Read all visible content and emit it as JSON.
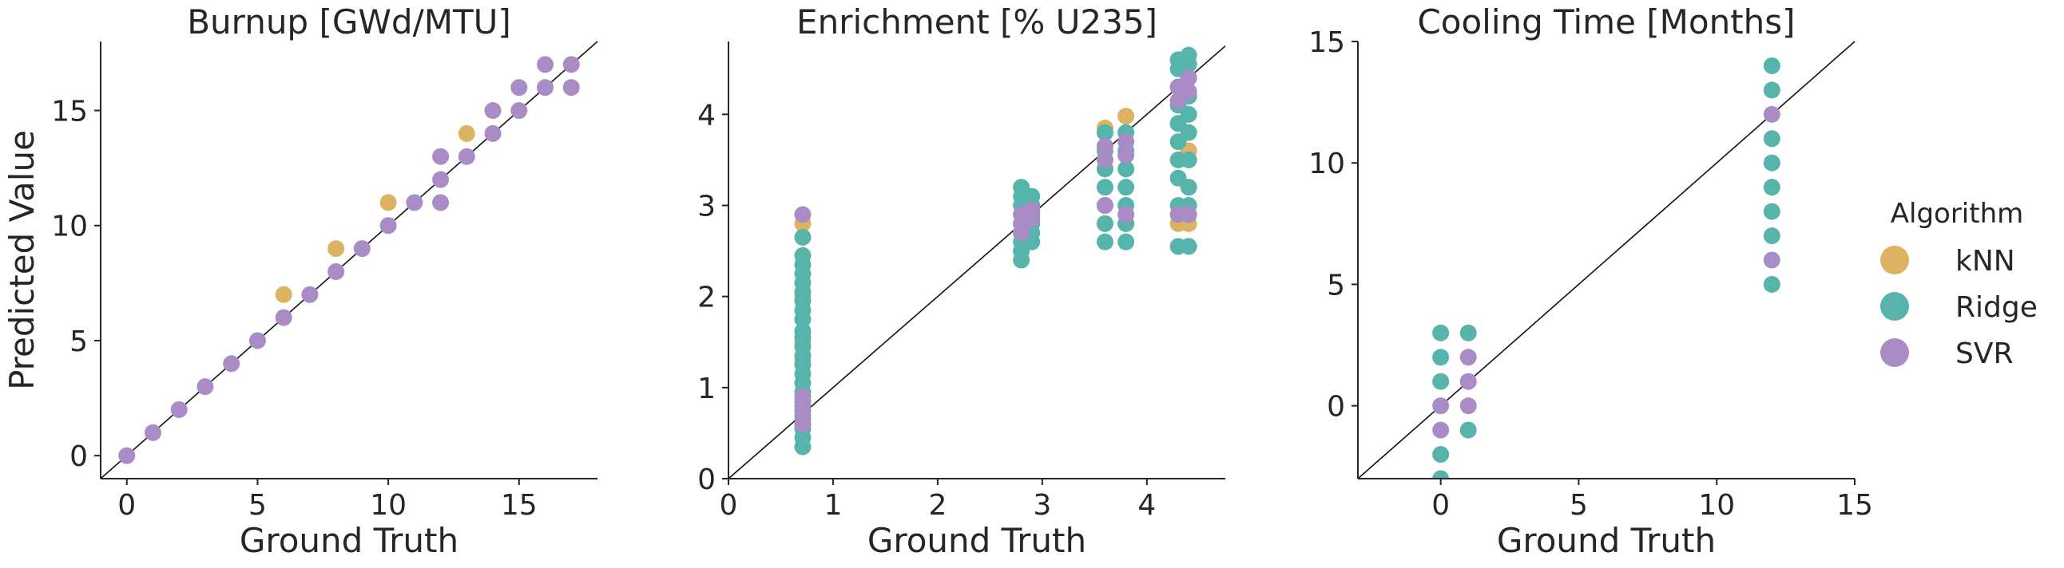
{
  "figure": {
    "ylabel": "Predicted Value",
    "legend": {
      "title": "Algorithm",
      "placement": "right",
      "entries": [
        {
          "name": "kNN",
          "color": "#dbb363"
        },
        {
          "name": "Ridge",
          "color": "#57b4ab"
        },
        {
          "name": "SVR",
          "color": "#a98cc6"
        }
      ]
    }
  },
  "chart_data": [
    {
      "type": "scatter",
      "title": "Burnup [GWd/MTU]",
      "xlabel": "Ground Truth",
      "xlim": [
        -1,
        18
      ],
      "ylim": [
        -1,
        18
      ],
      "xticks": [
        0,
        5,
        10,
        15
      ],
      "yticks": [
        0,
        5,
        10,
        15
      ],
      "identity_line": true,
      "series": [
        {
          "name": "kNN",
          "color": "#dbb363",
          "points": [
            [
              6,
              7
            ],
            [
              8,
              9
            ],
            [
              10,
              11
            ],
            [
              13,
              14
            ]
          ]
        },
        {
          "name": "Ridge",
          "color": "#57b4ab",
          "points": []
        },
        {
          "name": "SVR",
          "color": "#a98cc6",
          "points": [
            [
              0,
              0
            ],
            [
              1,
              1
            ],
            [
              2,
              2
            ],
            [
              3,
              3
            ],
            [
              4,
              4
            ],
            [
              5,
              5
            ],
            [
              6,
              6
            ],
            [
              7,
              7
            ],
            [
              8,
              8
            ],
            [
              9,
              9
            ],
            [
              10,
              10
            ],
            [
              11,
              11
            ],
            [
              12,
              11
            ],
            [
              12,
              12
            ],
            [
              12,
              13
            ],
            [
              13,
              13
            ],
            [
              14,
              14
            ],
            [
              14,
              15
            ],
            [
              15,
              15
            ],
            [
              15,
              16
            ],
            [
              16,
              16
            ],
            [
              16,
              17
            ],
            [
              17,
              16
            ],
            [
              17,
              17
            ]
          ]
        }
      ]
    },
    {
      "type": "scatter",
      "title": "Enrichment [% U235]",
      "xlabel": "Ground Truth",
      "xlim": [
        0,
        4.75
      ],
      "ylim": [
        0,
        4.8
      ],
      "xticks": [
        0,
        1,
        2,
        3,
        4
      ],
      "yticks": [
        0,
        1,
        2,
        3,
        4
      ],
      "identity_line": true,
      "series": [
        {
          "name": "kNN",
          "color": "#dbb363",
          "points": [
            [
              0.71,
              2.8
            ],
            [
              0.71,
              1.3
            ],
            [
              0.71,
              1.5
            ],
            [
              0.71,
              2.0
            ],
            [
              3.6,
              3.85
            ],
            [
              3.6,
              2.8
            ],
            [
              3.8,
              3.98
            ],
            [
              3.8,
              2.8
            ],
            [
              4.3,
              3.9
            ],
            [
              4.3,
              2.8
            ],
            [
              4.4,
              2.8
            ],
            [
              4.4,
              3.6
            ]
          ]
        },
        {
          "name": "Ridge",
          "color": "#57b4ab",
          "points": [
            [
              0.71,
              0.35
            ],
            [
              0.71,
              0.45
            ],
            [
              0.71,
              0.55
            ],
            [
              0.71,
              0.65
            ],
            [
              0.71,
              0.75
            ],
            [
              0.71,
              0.85
            ],
            [
              0.71,
              0.95
            ],
            [
              0.71,
              1.05
            ],
            [
              0.71,
              1.15
            ],
            [
              0.71,
              1.25
            ],
            [
              0.71,
              1.35
            ],
            [
              0.71,
              1.45
            ],
            [
              0.71,
              1.55
            ],
            [
              0.71,
              1.62
            ],
            [
              0.71,
              1.75
            ],
            [
              0.71,
              1.85
            ],
            [
              0.71,
              1.95
            ],
            [
              0.71,
              2.05
            ],
            [
              0.71,
              2.15
            ],
            [
              0.71,
              2.25
            ],
            [
              0.71,
              2.35
            ],
            [
              0.71,
              2.45
            ],
            [
              0.71,
              2.65
            ],
            [
              2.8,
              2.4
            ],
            [
              2.8,
              2.5
            ],
            [
              2.8,
              2.6
            ],
            [
              2.8,
              2.7
            ],
            [
              2.8,
              2.8
            ],
            [
              2.8,
              2.9
            ],
            [
              2.8,
              3.0
            ],
            [
              2.8,
              3.1
            ],
            [
              2.8,
              3.2
            ],
            [
              2.9,
              2.6
            ],
            [
              2.9,
              2.7
            ],
            [
              2.9,
              2.8
            ],
            [
              2.9,
              2.9
            ],
            [
              2.9,
              3.0
            ],
            [
              2.9,
              3.1
            ],
            [
              3.6,
              2.6
            ],
            [
              3.6,
              2.8
            ],
            [
              3.6,
              3.0
            ],
            [
              3.6,
              3.2
            ],
            [
              3.6,
              3.4
            ],
            [
              3.6,
              3.6
            ],
            [
              3.6,
              3.8
            ],
            [
              3.8,
              2.6
            ],
            [
              3.8,
              2.8
            ],
            [
              3.8,
              3.0
            ],
            [
              3.8,
              3.2
            ],
            [
              3.8,
              3.4
            ],
            [
              3.8,
              3.6
            ],
            [
              3.8,
              3.8
            ],
            [
              4.3,
              2.55
            ],
            [
              4.3,
              3.0
            ],
            [
              4.3,
              3.3
            ],
            [
              4.3,
              3.5
            ],
            [
              4.3,
              3.7
            ],
            [
              4.3,
              3.9
            ],
            [
              4.3,
              4.1
            ],
            [
              4.3,
              4.3
            ],
            [
              4.3,
              4.5
            ],
            [
              4.3,
              4.6
            ],
            [
              4.4,
              2.55
            ],
            [
              4.4,
              3.0
            ],
            [
              4.4,
              3.2
            ],
            [
              4.4,
              3.5
            ],
            [
              4.4,
              3.8
            ],
            [
              4.4,
              4.0
            ],
            [
              4.4,
              4.2
            ],
            [
              4.4,
              4.4
            ],
            [
              4.4,
              4.55
            ],
            [
              4.4,
              4.65
            ]
          ]
        },
        {
          "name": "SVR",
          "color": "#a98cc6",
          "points": [
            [
              0.71,
              2.9
            ],
            [
              0.71,
              0.6
            ],
            [
              0.71,
              0.7
            ],
            [
              0.71,
              0.8
            ],
            [
              0.71,
              0.9
            ],
            [
              2.8,
              2.7
            ],
            [
              2.8,
              2.8
            ],
            [
              2.8,
              2.9
            ],
            [
              2.9,
              2.85
            ],
            [
              2.9,
              2.95
            ],
            [
              3.6,
              3.5
            ],
            [
              3.6,
              3.65
            ],
            [
              3.6,
              3.0
            ],
            [
              3.8,
              3.55
            ],
            [
              3.8,
              3.7
            ],
            [
              3.8,
              2.9
            ],
            [
              4.3,
              4.15
            ],
            [
              4.3,
              4.3
            ],
            [
              4.3,
              2.9
            ],
            [
              4.4,
              4.25
            ],
            [
              4.4,
              4.4
            ],
            [
              4.4,
              2.9
            ]
          ]
        }
      ]
    },
    {
      "type": "scatter",
      "title": "Cooling Time [Months]",
      "xlabel": "Ground Truth",
      "xlim": [
        -3,
        15
      ],
      "ylim": [
        -3,
        15
      ],
      "xticks": [
        0,
        5,
        10,
        15
      ],
      "yticks": [
        0,
        5,
        10,
        15
      ],
      "identity_line": true,
      "series": [
        {
          "name": "kNN",
          "color": "#dbb363",
          "points": []
        },
        {
          "name": "Ridge",
          "color": "#57b4ab",
          "points": [
            [
              0,
              3
            ],
            [
              0,
              2
            ],
            [
              0,
              1
            ],
            [
              0,
              -2
            ],
            [
              0,
              -3
            ],
            [
              1,
              3
            ],
            [
              1,
              -1
            ],
            [
              12,
              14
            ],
            [
              12,
              13
            ],
            [
              12,
              11
            ],
            [
              12,
              10
            ],
            [
              12,
              9
            ],
            [
              12,
              8
            ],
            [
              12,
              7
            ],
            [
              12,
              5
            ]
          ]
        },
        {
          "name": "SVR",
          "color": "#a98cc6",
          "points": [
            [
              0,
              0
            ],
            [
              0,
              -1
            ],
            [
              1,
              2
            ],
            [
              1,
              1
            ],
            [
              1,
              0
            ],
            [
              12,
              12
            ],
            [
              12,
              6
            ]
          ]
        }
      ]
    }
  ]
}
